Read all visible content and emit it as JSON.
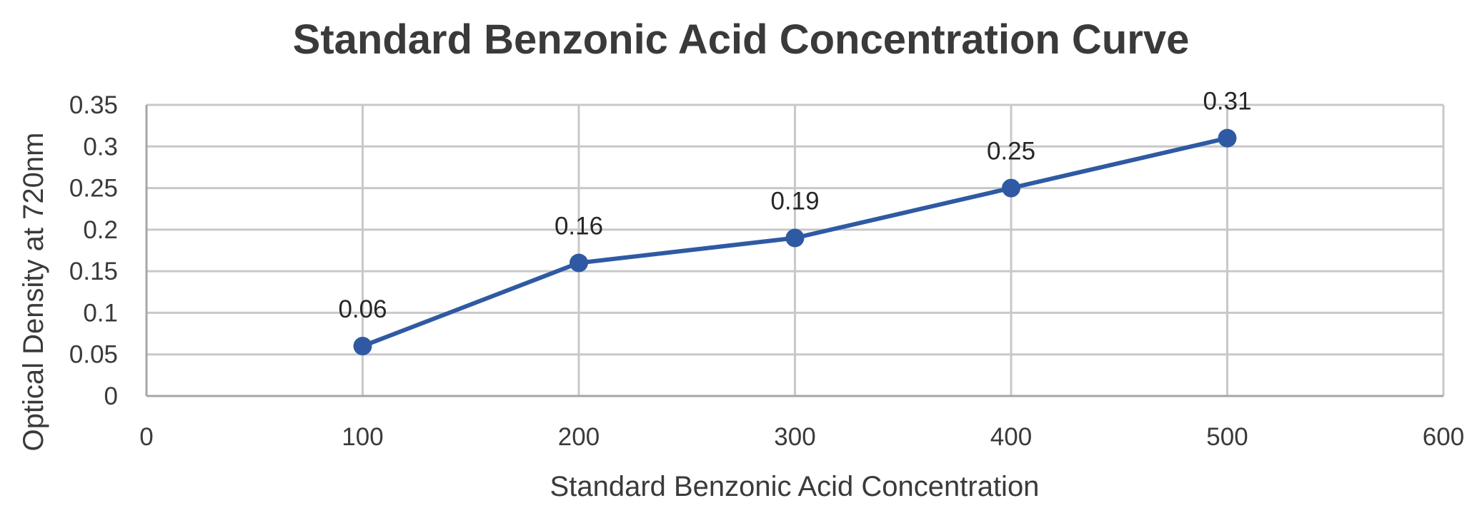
{
  "chart_data": {
    "type": "line",
    "title": "Standard Benzonic Acid Concentration Curve",
    "xlabel": "Standard Benzonic Acid Concentration",
    "ylabel": "Optical Density at 720nm",
    "xlim": [
      0,
      600
    ],
    "ylim": [
      0,
      0.35
    ],
    "x_ticks": [
      0,
      100,
      200,
      300,
      400,
      500,
      600
    ],
    "x_tick_labels": [
      "0",
      "100",
      "200",
      "300",
      "400",
      "500",
      "600"
    ],
    "y_ticks": [
      0,
      0.05,
      0.1,
      0.15,
      0.2,
      0.25,
      0.3,
      0.35
    ],
    "y_tick_labels": [
      "0",
      "0.05",
      "0.1",
      "0.15",
      "0.2",
      "0.25",
      "0.3",
      "0.35"
    ],
    "grid": true,
    "legend": "none",
    "series": [
      {
        "x": [
          100,
          200,
          300,
          400,
          500
        ],
        "values": [
          0.06,
          0.16,
          0.19,
          0.25,
          0.31
        ],
        "data_labels": [
          "0.06",
          "0.16",
          "0.19",
          "0.25",
          "0.31"
        ],
        "color": "#2f5aa3",
        "marker": "circle"
      }
    ]
  }
}
